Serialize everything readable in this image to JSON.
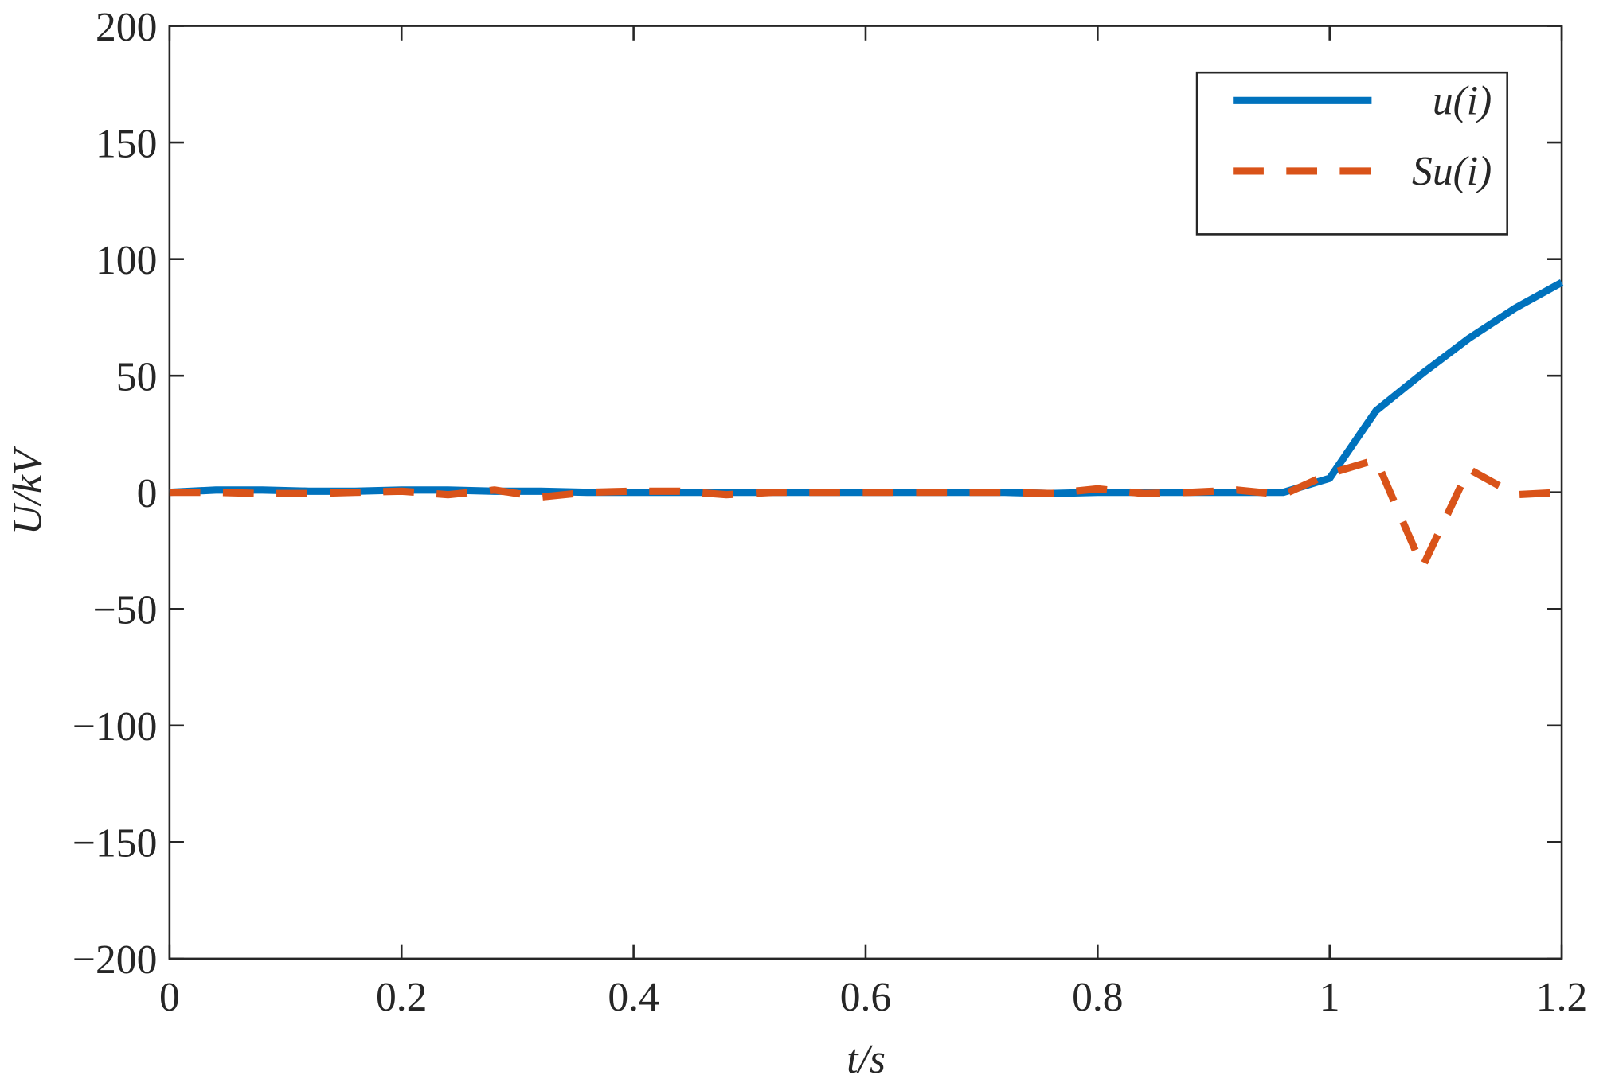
{
  "chart_data": {
    "type": "line",
    "xlabel": "t/s",
    "ylabel": "U/kV",
    "x": [
      0,
      0.04,
      0.08,
      0.12,
      0.16,
      0.2,
      0.24,
      0.28,
      0.32,
      0.36,
      0.4,
      0.44,
      0.48,
      0.52,
      0.56,
      0.6,
      0.64,
      0.68,
      0.72,
      0.76,
      0.8,
      0.84,
      0.88,
      0.92,
      0.96,
      1.0,
      1.04,
      1.08,
      1.12,
      1.16,
      1.2
    ],
    "series": [
      {
        "name": "u(i)",
        "color": "#0072BD",
        "dash": false,
        "values": [
          0,
          1,
          1,
          0.5,
          0.5,
          1,
          1,
          0.5,
          0.5,
          0,
          0,
          0,
          0,
          0,
          0,
          0,
          0,
          0,
          0,
          -0.5,
          0,
          0,
          0,
          0,
          0,
          6,
          35,
          51,
          66,
          79,
          90
        ]
      },
      {
        "name": "Su(i)",
        "color": "#D95319",
        "dash": true,
        "values": [
          0,
          0,
          -0.5,
          -0.5,
          0,
          0.5,
          -1,
          1,
          -2,
          0,
          0.5,
          0.5,
          -1,
          0,
          0,
          0,
          0,
          0,
          0,
          -0.5,
          1.5,
          -0.5,
          0,
          1,
          -1,
          8,
          14,
          -32,
          10,
          -1,
          0
        ]
      }
    ],
    "xlim": [
      0,
      1.2
    ],
    "xticks": [
      0,
      0.2,
      0.4,
      0.6,
      0.8,
      1,
      1.2
    ],
    "ylim": [
      -200,
      200
    ],
    "yticks": [
      {
        "value": -200,
        "label": "−200"
      },
      {
        "value": -150,
        "label": "−150"
      },
      {
        "value": -100,
        "label": "−100"
      },
      {
        "value": -50,
        "label": "−50"
      },
      0,
      50,
      100,
      150,
      200
    ],
    "legend": "upper right",
    "grid": false
  }
}
